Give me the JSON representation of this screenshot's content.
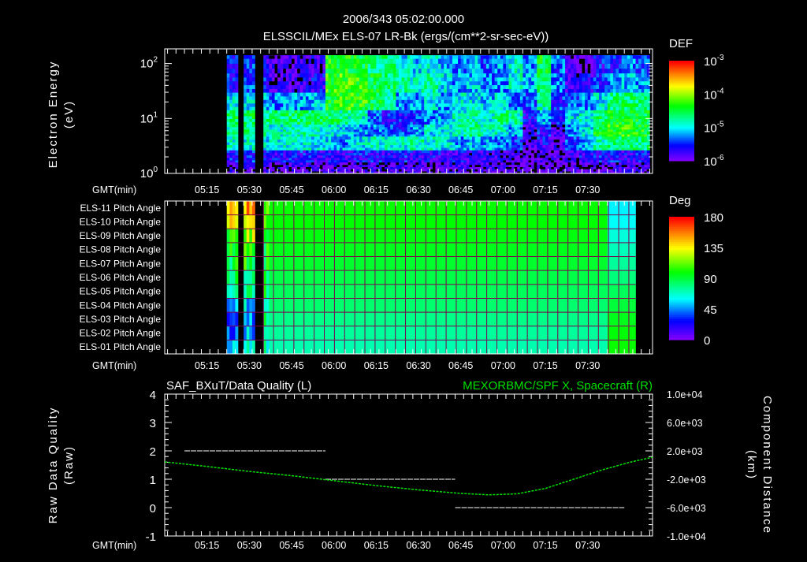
{
  "header": {
    "timestamp": "2006/343 05:02:00.000",
    "subtitle": "ELSSCIL/MEx ELS-07 LR-Bk  (ergs/(cm**2-sr-sec-eV))"
  },
  "time_axis_label": "GMT(min)",
  "chart_data": [
    {
      "type": "heatmap",
      "name": "energy-spectrogram",
      "title": "ELSSCIL/MEx ELS-07 LR-Bk  (ergs/(cm**2-sr-sec-eV))",
      "ylabel": "Electron Energy",
      "ylabel_units": "(eV)",
      "xlabel": "GMT(min)",
      "xlim": [
        "05:00",
        "07:53"
      ],
      "ylim": [
        1,
        185
      ],
      "yscale": "log",
      "xticks": [
        "05:15",
        "05:30",
        "05:45",
        "06:00",
        "06:15",
        "06:30",
        "06:45",
        "07:00",
        "07:15",
        "07:30"
      ],
      "yticks": [
        {
          "base": "10",
          "exp": "2",
          "value": 100
        },
        {
          "base": "10",
          "exp": "1",
          "value": 10
        },
        {
          "base": "10",
          "exp": "0",
          "value": 1
        }
      ],
      "colorbar": {
        "title": "DEF",
        "scale": "log",
        "range_log10": [
          -6,
          -3
        ],
        "ticks": [
          {
            "base": "10",
            "exp": "-3"
          },
          {
            "base": "10",
            "exp": "-4"
          },
          {
            "base": "10",
            "exp": "-5"
          },
          {
            "base": "10",
            "exp": "-6"
          }
        ]
      },
      "time_bins_start": "05:02",
      "time_bin_minutes": 5,
      "data_start": "05:22",
      "data_end": "07:53",
      "gaps": [
        [
          "05:26",
          "05:28"
        ],
        [
          "05:32",
          "05:35"
        ]
      ],
      "energy_band_edges_eV": [
        1,
        1.58,
        2.63,
        4.68,
        7.76,
        14.1,
        29.5,
        66.1,
        186
      ],
      "log10_def_rows_high_to_low": [
        [
          null,
          null,
          null,
          null,
          -5.6,
          -5.5,
          -5.7,
          -5.9,
          -5.9,
          -5.8,
          -5.8,
          -4.4,
          -4.4,
          -4.5,
          -4.7,
          -4.6,
          -5.0,
          -5.1,
          -4.9,
          -5.1,
          -5.3,
          -5.2,
          -5.4,
          -5.2,
          -4.9,
          -5.3,
          -4.5,
          -5.4,
          -6.0,
          -6.1,
          -5.6,
          -5.5,
          -5.3,
          -5.4
        ],
        [
          null,
          null,
          null,
          null,
          -5.5,
          -5.4,
          -5.6,
          -5.9,
          -5.8,
          -5.8,
          -5.7,
          -4.3,
          -4.2,
          -4.3,
          -4.5,
          -4.6,
          -4.8,
          -4.9,
          -4.8,
          -5.0,
          -5.2,
          -5.1,
          -5.3,
          -5.2,
          -4.9,
          -5.2,
          -4.6,
          -5.3,
          -5.8,
          -5.7,
          -5.5,
          -5.3,
          -5.1,
          -5.2
        ],
        [
          null,
          null,
          null,
          null,
          -5.0,
          -5.0,
          -5.1,
          -5.3,
          -5.2,
          -5.2,
          -5.1,
          -4.4,
          -4.3,
          -4.3,
          -4.5,
          -4.7,
          -5.3,
          -5.2,
          -5.0,
          -5.2,
          -5.0,
          -5.0,
          -5.1,
          -5.0,
          -5.3,
          -5.4,
          -4.8,
          -5.5,
          -5.4,
          -5.3,
          -5.0,
          -4.7,
          -4.6,
          -4.7
        ],
        [
          null,
          null,
          null,
          null,
          -4.6,
          -4.6,
          -4.7,
          -4.7,
          -4.6,
          -4.6,
          -4.6,
          -4.6,
          -4.8,
          -4.9,
          -5.4,
          -5.6,
          -5.6,
          -5.5,
          -5.3,
          -5.2,
          -4.9,
          -4.8,
          -4.9,
          -4.7,
          -4.8,
          -5.7,
          -5.2,
          -5.6,
          -5.0,
          -4.9,
          -4.6,
          -4.5,
          -4.4,
          -4.5
        ],
        [
          null,
          null,
          null,
          null,
          -4.8,
          -4.7,
          -4.8,
          -4.9,
          -4.8,
          -4.8,
          -4.9,
          -5.0,
          -5.1,
          -5.2,
          -5.3,
          -5.4,
          -5.5,
          -5.2,
          -5.0,
          -5.0,
          -4.8,
          -4.7,
          -4.9,
          -4.9,
          -5.2,
          -5.8,
          -5.6,
          -5.9,
          -5.3,
          -5.0,
          -4.5,
          -4.3,
          -4.3,
          -4.4
        ],
        [
          null,
          null,
          null,
          null,
          -4.9,
          -4.9,
          -5.0,
          -4.9,
          -4.9,
          -4.9,
          -5.0,
          -5.1,
          -5.2,
          -5.0,
          -4.9,
          -4.9,
          -4.9,
          -4.8,
          -4.9,
          -5.0,
          -5.2,
          -5.1,
          -5.2,
          -5.3,
          -5.5,
          -5.9,
          -5.7,
          -5.9,
          -5.4,
          -5.2,
          -4.8,
          -4.6,
          -4.6,
          -4.7
        ],
        [
          null,
          null,
          null,
          null,
          -5.6,
          -5.5,
          -5.6,
          -5.7,
          -5.6,
          -5.6,
          -5.7,
          -5.7,
          -5.7,
          -5.6,
          -5.6,
          -5.7,
          -5.6,
          -5.7,
          -5.7,
          -5.7,
          -5.7,
          -5.8,
          -5.8,
          -5.8,
          -5.9,
          -6.0,
          -5.9,
          -6.0,
          -5.8,
          -5.7,
          -5.6,
          -5.6,
          -5.7,
          -5.6
        ],
        [
          null,
          null,
          null,
          null,
          -5.9,
          -5.9,
          -5.9,
          -6.0,
          -5.9,
          -5.9,
          -6.0,
          -5.9,
          -5.9,
          -5.9,
          -5.8,
          -5.9,
          -5.9,
          -5.9,
          -6.0,
          -5.9,
          -5.9,
          -6.0,
          -5.9,
          -6.0,
          -6.0,
          -6.1,
          -6.0,
          -6.1,
          -6.0,
          -6.0,
          -5.9,
          -5.9,
          -5.9,
          -5.9
        ]
      ]
    },
    {
      "type": "heatmap",
      "name": "pitch-angle",
      "xlabel": "GMT(min)",
      "xlim": [
        "05:00",
        "07:53"
      ],
      "xticks": [
        "05:15",
        "05:30",
        "05:45",
        "06:00",
        "06:15",
        "06:30",
        "06:45",
        "07:00",
        "07:15",
        "07:30"
      ],
      "colorbar": {
        "title": "Deg",
        "range": [
          0,
          180
        ],
        "ticks": [
          "180",
          "135",
          "90",
          "45",
          "0"
        ]
      },
      "time_bins_start": "05:02",
      "time_bin_minutes": 5,
      "data_start": "05:22",
      "data_end": "07:47",
      "gaps": [
        [
          "05:26",
          "05:28"
        ],
        [
          "05:32",
          "05:35"
        ]
      ],
      "rows": [
        {
          "label": "ELS-11 Pitch Angle",
          "values": [
            null,
            null,
            null,
            null,
            140,
            150,
            100,
            100,
            100,
            100,
            100,
            100,
            100,
            100,
            100,
            100,
            100,
            100,
            100,
            100,
            100,
            100,
            100,
            100,
            100,
            100,
            100,
            100,
            100,
            100,
            100,
            58,
            58,
            null
          ]
        },
        {
          "label": "ELS-10 Pitch Angle",
          "values": [
            null,
            null,
            null,
            null,
            130,
            140,
            99,
            99,
            99,
            99,
            99,
            99,
            99,
            99,
            99,
            99,
            99,
            99,
            99,
            99,
            99,
            99,
            99,
            99,
            99,
            99,
            99,
            99,
            99,
            99,
            99,
            60,
            60,
            null
          ]
        },
        {
          "label": "ELS-09 Pitch Angle",
          "values": [
            null,
            null,
            null,
            null,
            110,
            120,
            97,
            97,
            97,
            97,
            97,
            97,
            97,
            97,
            97,
            97,
            97,
            97,
            97,
            97,
            97,
            97,
            97,
            97,
            97,
            97,
            97,
            97,
            97,
            97,
            97,
            65,
            65,
            null
          ]
        },
        {
          "label": "ELS-08 Pitch Angle",
          "values": [
            null,
            null,
            null,
            null,
            100,
            105,
            95,
            95,
            95,
            95,
            95,
            95,
            95,
            95,
            95,
            95,
            95,
            95,
            95,
            95,
            95,
            95,
            95,
            95,
            95,
            95,
            95,
            95,
            95,
            95,
            95,
            70,
            70,
            null
          ]
        },
        {
          "label": "ELS-07 Pitch Angle",
          "values": [
            null,
            null,
            null,
            null,
            90,
            95,
            92,
            92,
            92,
            92,
            92,
            92,
            92,
            92,
            92,
            92,
            92,
            92,
            92,
            92,
            92,
            92,
            92,
            92,
            92,
            92,
            92,
            92,
            92,
            92,
            92,
            75,
            75,
            null
          ]
        },
        {
          "label": "ELS-06 Pitch Angle",
          "values": [
            null,
            null,
            null,
            null,
            80,
            85,
            88,
            88,
            88,
            88,
            88,
            88,
            88,
            88,
            88,
            88,
            88,
            88,
            88,
            88,
            88,
            88,
            88,
            88,
            88,
            88,
            88,
            88,
            88,
            88,
            88,
            80,
            80,
            null
          ]
        },
        {
          "label": "ELS-05 Pitch Angle",
          "values": [
            null,
            null,
            null,
            null,
            70,
            75,
            85,
            85,
            85,
            85,
            85,
            85,
            85,
            85,
            85,
            85,
            85,
            85,
            85,
            85,
            85,
            85,
            85,
            85,
            85,
            85,
            85,
            85,
            85,
            85,
            85,
            85,
            85,
            null
          ]
        },
        {
          "label": "ELS-04 Pitch Angle",
          "values": [
            null,
            null,
            null,
            null,
            50,
            55,
            82,
            82,
            82,
            82,
            82,
            82,
            82,
            82,
            82,
            82,
            82,
            82,
            82,
            82,
            82,
            82,
            82,
            82,
            82,
            82,
            82,
            82,
            82,
            82,
            82,
            90,
            90,
            null
          ]
        },
        {
          "label": "ELS-03 Pitch Angle",
          "values": [
            null,
            null,
            null,
            null,
            40,
            45,
            78,
            78,
            78,
            78,
            78,
            78,
            78,
            78,
            78,
            78,
            78,
            78,
            78,
            78,
            78,
            78,
            78,
            78,
            78,
            78,
            78,
            78,
            78,
            78,
            78,
            95,
            95,
            null
          ]
        },
        {
          "label": "ELS-02 Pitch Angle",
          "values": [
            null,
            null,
            null,
            null,
            45,
            50,
            75,
            75,
            75,
            75,
            75,
            75,
            75,
            75,
            75,
            75,
            75,
            75,
            75,
            75,
            75,
            75,
            75,
            75,
            75,
            75,
            75,
            75,
            75,
            75,
            75,
            98,
            98,
            null
          ]
        },
        {
          "label": "ELS-01 Pitch Angle",
          "values": [
            null,
            null,
            null,
            null,
            55,
            60,
            72,
            72,
            72,
            72,
            72,
            72,
            72,
            72,
            72,
            72,
            72,
            72,
            72,
            72,
            72,
            72,
            72,
            72,
            72,
            72,
            72,
            72,
            72,
            72,
            72,
            100,
            100,
            null
          ]
        }
      ]
    },
    {
      "type": "line",
      "name": "quality-and-position",
      "title_left": "SAF_BXuT/Data Quality (L)",
      "title_right": "MEXORBMC/SPF X, Spacecraft (R)",
      "ylabel_left": "Raw Data Quality",
      "ylabel_left_units": "(Raw)",
      "ylabel_right": "Component Distance",
      "ylabel_right_units": "(km)",
      "xlabel": "GMT(min)",
      "xlim": [
        "05:00",
        "07:53"
      ],
      "ylim_left": [
        -1,
        4
      ],
      "ylim_right": [
        -10000,
        10000
      ],
      "xticks": [
        "05:15",
        "05:30",
        "05:45",
        "06:00",
        "06:15",
        "06:30",
        "06:45",
        "07:00",
        "07:15",
        "07:30"
      ],
      "yticks_left": [
        "4",
        "3",
        "2",
        "1",
        "0",
        "-1"
      ],
      "yticks_right": [
        "1.0e+04",
        "6.0e+03",
        "2.0e+03",
        "-2.0e+03",
        "-6.0e+03",
        "-1.0e+04"
      ],
      "series": [
        {
          "name": "Data Quality",
          "axis": "left",
          "color": "#ffffff",
          "segments": [
            {
              "start": "05:07",
              "end": "05:57",
              "value": 2
            },
            {
              "start": "05:57",
              "end": "06:43",
              "value": 1
            },
            {
              "start": "06:43",
              "end": "07:43",
              "value": 0
            }
          ]
        },
        {
          "name": "SPF X, Spacecraft",
          "axis": "right",
          "color": "#00e000",
          "points": [
            [
              "05:00",
              450
            ],
            [
              "05:15",
              -200
            ],
            [
              "05:30",
              -900
            ],
            [
              "05:45",
              -1500
            ],
            [
              "06:00",
              -2200
            ],
            [
              "06:15",
              -2900
            ],
            [
              "06:30",
              -3500
            ],
            [
              "06:45",
              -4000
            ],
            [
              "06:55",
              -4200
            ],
            [
              "07:05",
              -4050
            ],
            [
              "07:15",
              -3300
            ],
            [
              "07:25",
              -2000
            ],
            [
              "07:35",
              -700
            ],
            [
              "07:45",
              400
            ],
            [
              "07:53",
              1100
            ]
          ]
        }
      ]
    }
  ]
}
